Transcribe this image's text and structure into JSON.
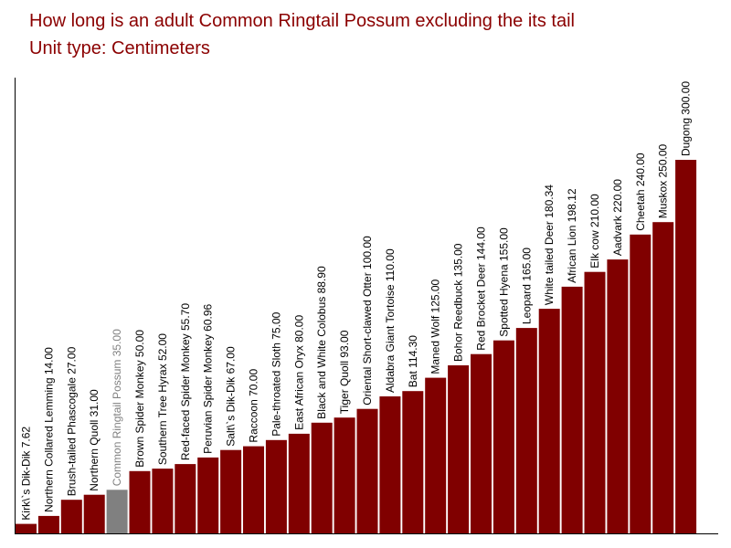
{
  "chart_data": {
    "type": "bar",
    "title": "How long is an adult Common Ringtail Possum excluding the its tail",
    "subtitle": "Unit type: Centimeters",
    "categories": [
      "Kirk\\`s Dik-Dik",
      "Northern Collared Lemming",
      "Brush-tailed Phascogale",
      "Northern Quoll",
      "Common Ringtail Possum",
      "Brown Spider Monkey",
      "Southern Tree Hyrax",
      "Red-faced Spider Monkey",
      "Peruvian Spider Monkey",
      "Salt\\`s Dik-Dik",
      "Raccoon",
      "Pale-throated Sloth",
      "East African Oryx",
      "Black and White Colobus",
      "Tiger Quoll",
      "Oriental Short-clawed Otter",
      "Aldabra Giant Tortoise",
      "Bat",
      "Maned Wolf",
      "Bohor Reedbuck",
      "Red Brocket Deer",
      "Spotted Hyena",
      "Leopard",
      "White tailed Deer",
      "African Lion",
      "Elk cow",
      "Aadvark",
      "Cheetah",
      "Muskox",
      "Dugong"
    ],
    "values": [
      7.62,
      14.0,
      27.0,
      31.0,
      35.0,
      50.0,
      52.0,
      55.7,
      60.96,
      67.0,
      70.0,
      75.0,
      80.0,
      88.9,
      93.0,
      100.0,
      110.0,
      114.3,
      125.0,
      135.0,
      144.0,
      155.0,
      165.0,
      180.34,
      198.12,
      210.0,
      220.0,
      240.0,
      250.0,
      300.0
    ],
    "labels": [
      "Kirk\\`s Dik-Dik 7.62",
      "Northern Collared Lemming 14.00",
      "Brush-tailed Phascogale 27.00",
      "Northern Quoll 31.00",
      "Common Ringtail Possum 35.00",
      "Brown Spider Monkey 50.00",
      "Southern Tree Hyrax 52.00",
      "Red-faced Spider Monkey 55.70",
      "Peruvian Spider Monkey 60.96",
      "Salt\\`s Dik-Dik 67.00",
      "Raccoon 70.00",
      "Pale-throated Sloth 75.00",
      "East African Oryx 80.00",
      "Black and White Colobus 88.90",
      "Tiger Quoll 93.00",
      "Oriental Short-clawed Otter 100.00",
      "Aldabra Giant Tortoise 110.00",
      "Bat 114.30",
      "Maned Wolf 125.00",
      "Bohor Reedbuck 135.00",
      "Red Brocket Deer 144.00",
      "Spotted Hyena 155.00",
      "Leopard  165.00",
      "White tailed Deer 180.34",
      "African Lion 198.12",
      "Elk cow 210.00",
      "Aadvark 220.00",
      "Cheetah 240.00",
      "Muskox 250.00",
      "Dugong 300.00"
    ],
    "highlight_index": 4,
    "colors": {
      "bar": "#800000",
      "highlight": "#808080",
      "label": "#000000",
      "highlight_label": "#808080",
      "title": "#8b0000"
    },
    "ylim": [
      0,
      300
    ],
    "grid": false,
    "xlabel": "",
    "ylabel": ""
  }
}
